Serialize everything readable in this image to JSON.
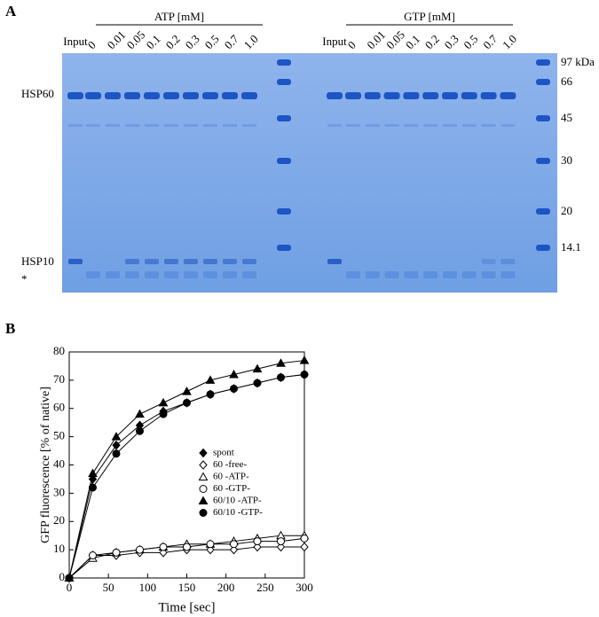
{
  "gel": {
    "panel_label": "A",
    "groups": [
      {
        "title": "ATP [mM]",
        "input": "Input",
        "lanes": [
          "0",
          "0.01",
          "0.05",
          "0.1",
          "0.2",
          "0.3",
          "0.5",
          "0.7",
          "1.0"
        ]
      },
      {
        "title": "GTP [mM]",
        "input": "Input",
        "lanes": [
          "0",
          "0.01",
          "0.05",
          "0.1",
          "0.2",
          "0.3",
          "0.5",
          "0.7",
          "1.0"
        ]
      }
    ],
    "band_labels": [
      "HSP60",
      "HSP10",
      "*"
    ],
    "marker_labels": [
      "97 kDa",
      "66",
      "45",
      "30",
      "20",
      "14.1"
    ]
  },
  "chart_data": {
    "type": "line",
    "panel_label": "B",
    "x_label": "Time [sec]",
    "y_label": "GFP fluorescence [% of native]",
    "x": [
      0,
      30,
      60,
      90,
      120,
      150,
      180,
      210,
      240,
      270,
      300
    ],
    "xlim": [
      0,
      300
    ],
    "xticks": [
      0,
      50,
      100,
      150,
      200,
      250,
      300
    ],
    "ylim": [
      0,
      80
    ],
    "yticks": [
      0,
      10,
      20,
      30,
      40,
      50,
      60,
      70,
      80
    ],
    "series": [
      {
        "name": "spont",
        "color": "#000000",
        "marker": "diamond",
        "filled": true,
        "values": [
          0,
          35,
          47,
          54,
          59,
          62,
          65,
          67,
          69,
          71,
          72
        ]
      },
      {
        "name": "60 -free-",
        "color": "#000000",
        "marker": "diamond",
        "filled": false,
        "values": [
          0,
          8,
          8,
          9,
          9,
          10,
          10,
          10,
          11,
          11,
          11
        ]
      },
      {
        "name": "60 -ATP-",
        "color": "#000000",
        "marker": "triangle",
        "filled": false,
        "values": [
          0,
          7,
          9,
          10,
          11,
          12,
          12,
          13,
          14,
          15,
          15
        ]
      },
      {
        "name": "60 -GTP-",
        "color": "#000000",
        "marker": "circle",
        "filled": false,
        "values": [
          0,
          8,
          9,
          10,
          11,
          11,
          12,
          12,
          13,
          13,
          14
        ]
      },
      {
        "name": "60/10 -ATP-",
        "color": "#000000",
        "marker": "triangle",
        "filled": true,
        "values": [
          0,
          37,
          50,
          58,
          62,
          66,
          70,
          72,
          74,
          76,
          77
        ]
      },
      {
        "name": "60/10 -GTP-",
        "color": "#000000",
        "marker": "circle",
        "filled": true,
        "values": [
          0,
          32,
          44,
          52,
          58,
          62,
          65,
          67,
          69,
          71,
          72
        ]
      }
    ]
  }
}
